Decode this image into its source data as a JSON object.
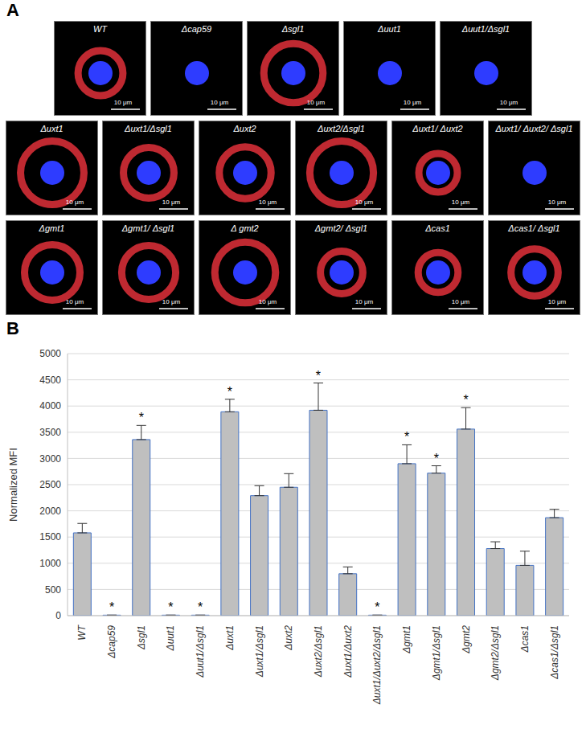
{
  "figure": {
    "panel_a": {
      "letter": "A",
      "scale_bar": "10 μm",
      "rows": [
        [
          "WT",
          "Δcap59",
          "Δsgl1",
          "Δuut1",
          "Δuut1/Δsgl1"
        ],
        [
          "Δuxt1",
          "Δuxt1/Δsgl1",
          "Δuxt2",
          "Δuxt2/Δsgl1",
          "Δuxt1/ Δuxt2",
          "Δuxt1/ Δuxt2/ Δsgl1"
        ],
        [
          "Δgmt1",
          "Δgmt1/ Δsgl1",
          "Δ gmt2",
          "Δgmt2/ Δsgl1",
          "Δcas1",
          "Δcas1/ Δsgl1"
        ]
      ]
    },
    "panel_b": {
      "letter": "B"
    }
  },
  "chart_data": {
    "type": "bar",
    "y_label": "Normalized MFI",
    "categories": [
      "WT",
      "Δcap59",
      "Δsgl1",
      "Δuut1",
      "Δuut1/Δsgl1",
      "Δuxt1",
      "Δuxt1/Δsgl1",
      "Δuxt2",
      "Δuxt2/Δsgl1",
      "Δuxt1/Δuxt2",
      "Δuxt1/Δuxt2/Δsgl1",
      "Δgmt1",
      "Δgmt1/Δsgl1",
      "Δgmt2",
      "Δgmt2/Δsgl1",
      "Δcas1",
      "Δcas1/Δsgl1"
    ],
    "values": [
      1580,
      10,
      3360,
      10,
      10,
      3890,
      2290,
      2450,
      3920,
      800,
      10,
      2900,
      2720,
      3560,
      1280,
      960,
      1870
    ],
    "error": [
      180,
      0,
      270,
      0,
      0,
      240,
      190,
      260,
      520,
      130,
      0,
      360,
      140,
      410,
      130,
      270,
      160
    ],
    "annotations": [
      "",
      "*",
      "*",
      "*",
      "*",
      "*",
      "",
      "",
      "*",
      "",
      "*",
      "*",
      "*",
      "*",
      "",
      "",
      ""
    ],
    "color": "#bfbfbf",
    "ylim": [
      0,
      5000
    ],
    "yticks": [
      0,
      500,
      1000,
      1500,
      2000,
      2500,
      3000,
      3500,
      4000,
      4500,
      5000
    ],
    "grid": true
  }
}
